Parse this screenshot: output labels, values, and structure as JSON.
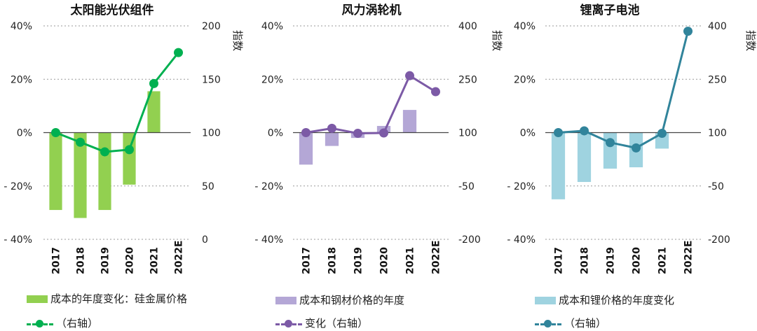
{
  "chart_data": [
    {
      "type": "bar",
      "title": "太阳能光伏组件",
      "categories": [
        "2017",
        "2018",
        "2019",
        "2020",
        "2021",
        "2022E"
      ],
      "bar_series": {
        "name": "成本的年度变化：硅金属价格",
        "values": [
          -29,
          -32,
          -29,
          -19.5,
          15.5,
          null
        ],
        "color": "#92d050"
      },
      "line_series": {
        "name": "（右轴）",
        "values": [
          100,
          91,
          82,
          84,
          146,
          175
        ],
        "color": "#00b050"
      },
      "y_left": {
        "range": [
          -40,
          40
        ],
        "ticks": [
          -40,
          -20,
          0,
          20,
          40
        ],
        "tick_labels": [
          "- 40%",
          "- 20%",
          "0%",
          "20%",
          "40%"
        ]
      },
      "y_right": {
        "label": "指数",
        "range": [
          0,
          200
        ],
        "ticks": [
          0,
          50,
          100,
          150,
          200
        ],
        "tick_labels": [
          "0",
          "50",
          "100",
          "150",
          "200"
        ]
      },
      "legend_bar_label": "成本的年度变化：硅金属价格",
      "legend_line_label": "（右轴）"
    },
    {
      "type": "bar",
      "title": "风力涡轮机",
      "categories": [
        "2017",
        "2018",
        "2019",
        "2020",
        "2021",
        "2022E"
      ],
      "bar_series": {
        "name": "成本和钢材价格的年度",
        "values": [
          -12,
          -5,
          -2,
          2.5,
          8.5,
          null
        ],
        "color": "#b4a7d6"
      },
      "line_series": {
        "name": "变化（右轴）",
        "values": [
          100,
          112,
          98,
          99,
          260,
          215
        ],
        "color": "#7c5aa6"
      },
      "y_left": {
        "range": [
          -40,
          40
        ],
        "ticks": [
          -40,
          -20,
          0,
          20,
          40
        ],
        "tick_labels": [
          "- 40%",
          "- 20%",
          "0%",
          "20%",
          "40%"
        ]
      },
      "y_right": {
        "label": "指数",
        "range": [
          -200,
          400
        ],
        "ticks": [
          -200,
          -50,
          100,
          250,
          400
        ],
        "tick_labels": [
          "-200",
          "-50",
          "100",
          "250",
          "400"
        ]
      },
      "legend_bar_label": "成本和钢材价格的年度",
      "legend_line_label": "变化（右轴）"
    },
    {
      "type": "bar",
      "title": "锂离子电池",
      "categories": [
        "2017",
        "2018",
        "2019",
        "2020",
        "2021",
        "2022E"
      ],
      "bar_series": {
        "name": "成本和锂价格的年度变化",
        "values": [
          -25,
          -18.5,
          -13.5,
          -13,
          -6,
          null
        ],
        "color": "#9fd3e0"
      },
      "line_series": {
        "name": "（右轴）",
        "values": [
          100,
          105,
          72,
          57,
          98,
          385
        ],
        "color": "#31849b"
      },
      "y_left": {
        "range": [
          -40,
          40
        ],
        "ticks": [
          -40,
          -20,
          0,
          20,
          40
        ],
        "tick_labels": [
          "- 40%",
          "- 20%",
          "0%",
          "20%",
          "40%"
        ]
      },
      "y_right": {
        "label": "指数",
        "range": [
          -200,
          400
        ],
        "ticks": [
          -200,
          -50,
          100,
          250,
          400
        ],
        "tick_labels": [
          "-200",
          "-50",
          "100",
          "250",
          "400"
        ]
      },
      "legend_bar_label": "成本和锂价格的年度变化",
      "legend_line_label": "（右轴）"
    }
  ]
}
